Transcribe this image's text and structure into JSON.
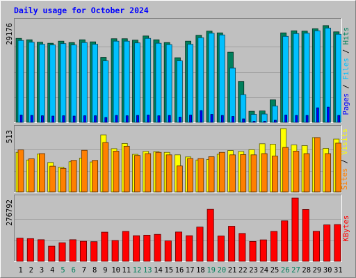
{
  "chart_data": {
    "type": "bar",
    "title": "Daily usage for October 2024",
    "x": [
      "1",
      "2",
      "3",
      "4",
      "5",
      "6",
      "7",
      "8",
      "9",
      "10",
      "11",
      "12",
      "13",
      "14",
      "15",
      "16",
      "17",
      "18",
      "19",
      "20",
      "21",
      "22",
      "23",
      "24",
      "25",
      "26",
      "27",
      "28",
      "29",
      "30",
      "31"
    ],
    "weekend_days": [
      "5",
      "6",
      "12",
      "13",
      "19",
      "20",
      "26",
      "27"
    ],
    "panels": [
      {
        "name": "hits-files-pages",
        "ymax_label": "29176",
        "ymax": 29176,
        "side_label": [
          "Pages",
          "Files",
          "Hits"
        ],
        "series": [
          {
            "name": "Hits",
            "color": "#00805c",
            "values": [
              24300,
              23900,
              23200,
              22900,
              23500,
              23100,
              23900,
              23300,
              18800,
              24200,
              24200,
              23800,
              25000,
              23900,
              23100,
              18700,
              23500,
              25200,
              26400,
              25900,
              20300,
              11800,
              3200,
              3300,
              6500,
              25900,
              26500,
              26400,
              27100,
              28000,
              26200
            ]
          },
          {
            "name": "Files",
            "color": "#00c0ff",
            "values": [
              23700,
              23200,
              22600,
              22400,
              22800,
              22400,
              23100,
              22600,
              17800,
              23500,
              23500,
              23000,
              24300,
              22900,
              22500,
              17800,
              22600,
              24500,
              25800,
              25300,
              15700,
              8000,
              2300,
              2400,
              4700,
              24900,
              25700,
              25800,
              26500,
              27300,
              25500
            ]
          },
          {
            "name": "Pages",
            "color": "#0000ff",
            "values": [
              2100,
              2000,
              1900,
              1800,
              1900,
              1800,
              1900,
              1900,
              1400,
              2000,
              1900,
              2000,
              2100,
              1900,
              2000,
              1500,
              2100,
              3400,
              2300,
              2000,
              1700,
              1000,
              300,
              300,
              600,
              2100,
              2000,
              2000,
              4200,
              4400,
              2000
            ]
          }
        ]
      },
      {
        "name": "visits-sites",
        "ymax_label": "513",
        "ymax": 513,
        "side_label": [
          "Sites",
          "Visits"
        ],
        "series": [
          {
            "name": "Visits",
            "color": "#ffff00",
            "values": [
              320,
              258,
              306,
              238,
              200,
              244,
              274,
              242,
              462,
              350,
              392,
              304,
              328,
              326,
              320,
              300,
              283,
              258,
              262,
              305,
              335,
              327,
              342,
              390,
              386,
              513,
              380,
              375,
              440,
              352,
              428
            ]
          },
          {
            "name": "Sites",
            "color": "#ff8000",
            "values": [
              340,
              268,
              310,
              208,
              190,
              255,
              337,
              255,
              400,
              330,
              370,
              295,
              310,
              320,
              300,
              210,
              270,
              270,
              285,
              320,
              300,
              302,
              300,
              310,
              290,
              360,
              330,
              310,
              440,
              310,
              395
            ]
          }
        ]
      },
      {
        "name": "kbytes",
        "ymax_label": "276792",
        "ymax": 276792,
        "side_label": [
          "KBytes"
        ],
        "series": [
          {
            "name": "KBytes",
            "color": "#ff0000",
            "values": [
              101500,
              99400,
              94700,
              66500,
              81200,
              94700,
              87900,
              86100,
              127600,
              91300,
              131000,
              112100,
              114400,
              118000,
              89500,
              128300,
              112100,
              150000,
              227600,
              111000,
              153600,
              122000,
              87000,
              94000,
              131000,
              177200,
              276792,
              226800,
              131500,
              159500,
              160900
            ]
          }
        ]
      }
    ]
  }
}
